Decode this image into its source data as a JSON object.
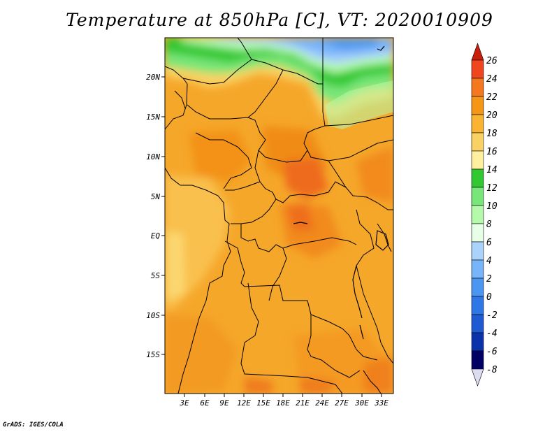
{
  "title": "Temperature at 850hPa [C], VT: 2020010909",
  "credit": "GrADS: IGES/COLA",
  "x_ticks": [
    "3E",
    "6E",
    "9E",
    "12E",
    "15E",
    "18E",
    "21E",
    "24E",
    "27E",
    "30E",
    "33E"
  ],
  "y_ticks": [
    "20N",
    "15N",
    "10N",
    "5N",
    "EQ",
    "5S",
    "10S",
    "15S"
  ],
  "colorbar": {
    "labels": [
      "26",
      "24",
      "22",
      "20",
      "18",
      "16",
      "14",
      "12",
      "10",
      "8",
      "6",
      "4",
      "2",
      "0",
      "-2",
      "-4",
      "-6",
      "-8"
    ],
    "colors": [
      "#dc1e14",
      "#f0461e",
      "#f5781e",
      "#f59614",
      "#fab432",
      "#fad264",
      "#fff0a0",
      "#32c832",
      "#78e678",
      "#b4faaa",
      "#e6ffe6",
      "#aad2fa",
      "#78b4fa",
      "#4b96f0",
      "#2d78e6",
      "#1e5ad2",
      "#0a32aa",
      "#000064"
    ],
    "top_color": "#c81e0a",
    "bottom_color": "#dcdcf0"
  }
}
